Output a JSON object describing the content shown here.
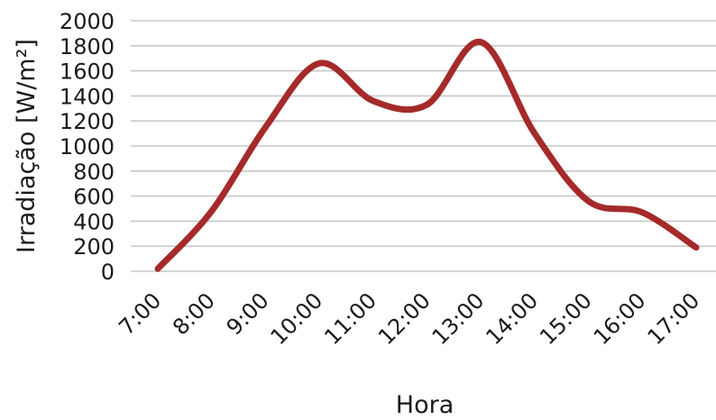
{
  "chart_data": {
    "type": "line",
    "title": "",
    "xlabel": "Hora",
    "ylabel": "Irradiação [W/m²]",
    "categories": [
      "7:00",
      "8:00",
      "9:00",
      "10:00",
      "11:00",
      "12:00",
      "13:00",
      "14:00",
      "15:00",
      "16:00",
      "17:00"
    ],
    "series": [
      {
        "values": [
          20,
          480,
          1150,
          1660,
          1360,
          1330,
          1830,
          1100,
          560,
          470,
          190
        ]
      }
    ],
    "ylim": [
      0,
      2000
    ],
    "yticks": [
      "0",
      "200",
      "400",
      "600",
      "800",
      "1000",
      "1200",
      "1400",
      "1600",
      "1800",
      "2000"
    ],
    "grid": true,
    "legend": "none",
    "colors": {
      "series": "#a52a2a",
      "grid": "#c8c8c8",
      "text": "#1a1a1a"
    }
  }
}
